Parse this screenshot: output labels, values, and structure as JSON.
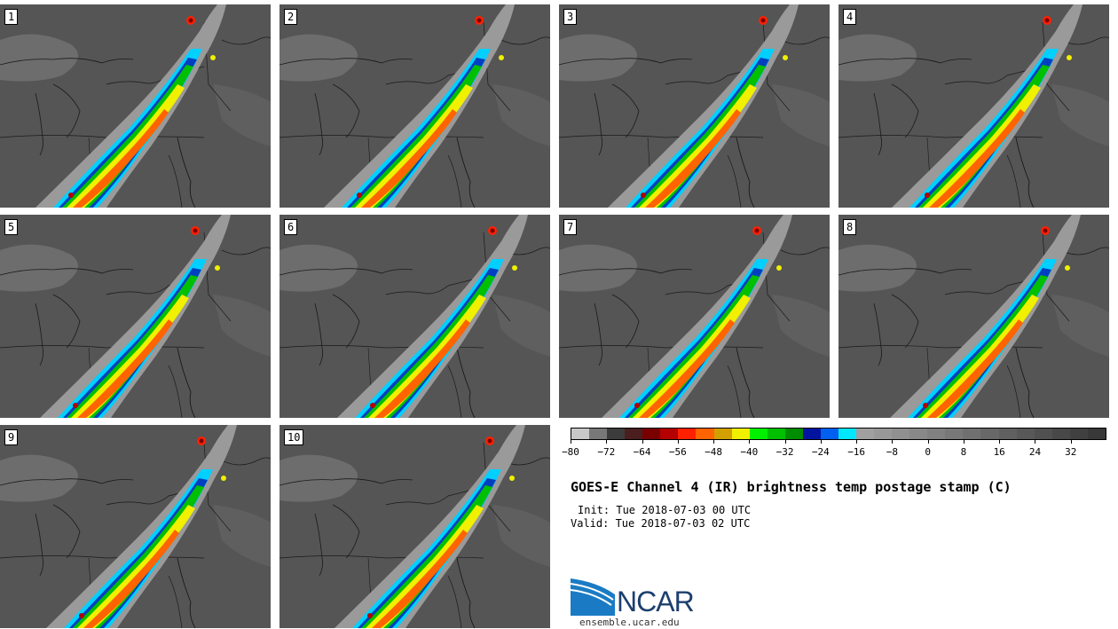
{
  "figure": {
    "title": "GOES-E Channel 4 (IR) brightness temp postage stamp (C)",
    "init": "Init: Tue 2018-07-03 00 UTC",
    "valid": "Valid: Tue 2018-07-03 02 UTC"
  },
  "members": [
    "1",
    "2",
    "3",
    "4",
    "5",
    "6",
    "7",
    "8",
    "9",
    "10"
  ],
  "colorbar": {
    "colors": [
      "#c8c8c8",
      "#787878",
      "#3c3c3c",
      "#4a1e1e",
      "#7a0000",
      "#b40000",
      "#ff2000",
      "#ff6400",
      "#d2a000",
      "#f0f000",
      "#00f000",
      "#00c000",
      "#008c00",
      "#0014a0",
      "#0060f0",
      "#00e8ff",
      "#a0a0a0",
      "#989898",
      "#909090",
      "#888888",
      "#808080",
      "#787878",
      "#707070",
      "#686868",
      "#606060",
      "#585858",
      "#505050",
      "#484848",
      "#404040",
      "#383838"
    ],
    "tick_labels": [
      "−80",
      "−72",
      "−64",
      "−56",
      "−48",
      "−40",
      "−32",
      "−24",
      "−16",
      "−8",
      "0",
      "8",
      "16",
      "24",
      "32"
    ],
    "tick_values": [
      -80,
      -72,
      -64,
      -56,
      -48,
      -40,
      -32,
      -24,
      -16,
      -8,
      0,
      8,
      16,
      24,
      32
    ],
    "min": -80,
    "max": 40
  },
  "logo": {
    "text": "NCAR",
    "url": "ensemble.ucar.edu"
  },
  "colors": {
    "background_gray": "#555555",
    "outline": "#1a1a1a"
  }
}
